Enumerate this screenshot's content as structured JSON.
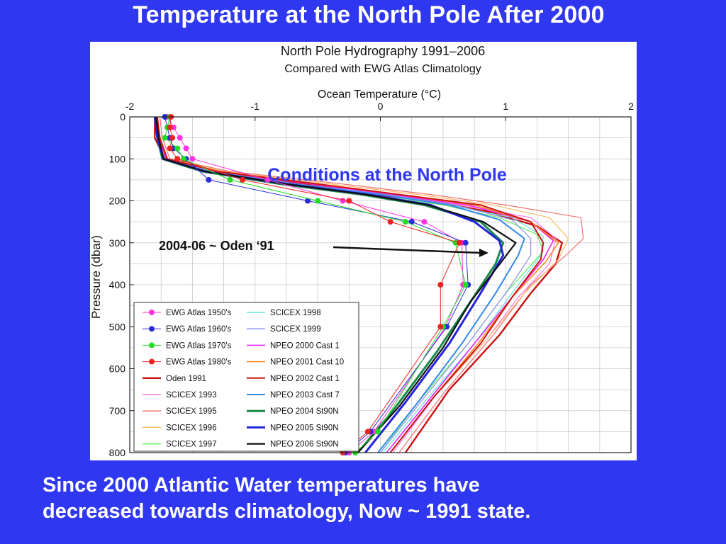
{
  "slide": {
    "title": "Temperature at the North Pole After 2000",
    "caption_lines": [
      "Since 2000 Atlantic Water  temperatures have",
      "decreased towards climatology, Now ~ 1991 state."
    ]
  },
  "chart_data": {
    "type": "line",
    "title": "North Pole Hydrography  1991–2006",
    "subtitle": "Compared with EWG Atlas Climatology",
    "xlabel": "Ocean Temperature (°C)",
    "ylabel": "Pressure  (dbar)",
    "xlim": [
      -2,
      2
    ],
    "ylim": [
      800,
      0
    ],
    "x_ticks": [
      -2,
      -1,
      0,
      1,
      2
    ],
    "y_ticks": [
      0,
      100,
      200,
      300,
      400,
      500,
      600,
      700,
      800
    ],
    "grid": true,
    "legend_position": "bottom-left",
    "annotations": [
      {
        "text": "Conditions at the North Pole",
        "color": "#2f37f0"
      },
      {
        "text": "2004-06 ~ Oden ‘91",
        "arrow_to": {
          "x": 0.86,
          "y": 325
        }
      }
    ],
    "series": [
      {
        "name": "EWG Atlas 1950's",
        "color": "#ff33dd",
        "style": "markers",
        "points": [
          [
            -1.7,
            0
          ],
          [
            -1.65,
            25
          ],
          [
            -1.6,
            50
          ],
          [
            -1.55,
            75
          ],
          [
            -1.5,
            100
          ],
          [
            -0.9,
            150
          ],
          [
            -0.3,
            200
          ],
          [
            0.35,
            250
          ],
          [
            0.65,
            300
          ],
          [
            0.66,
            400
          ],
          [
            0.52,
            500
          ],
          [
            -0.05,
            750
          ],
          [
            -0.25,
            800
          ]
        ]
      },
      {
        "name": "EWG Atlas 1960's",
        "color": "#2b2bd9",
        "style": "markers",
        "points": [
          [
            -1.72,
            0
          ],
          [
            -1.7,
            25
          ],
          [
            -1.68,
            50
          ],
          [
            -1.65,
            75
          ],
          [
            -1.55,
            100
          ],
          [
            -1.37,
            150
          ],
          [
            -0.58,
            200
          ],
          [
            0.25,
            250
          ],
          [
            0.68,
            300
          ],
          [
            0.7,
            400
          ],
          [
            0.53,
            500
          ],
          [
            -0.08,
            750
          ],
          [
            -0.28,
            800
          ]
        ]
      },
      {
        "name": "EWG Atlas 1970's",
        "color": "#22dd22",
        "style": "markers",
        "points": [
          [
            -1.68,
            0
          ],
          [
            -1.7,
            25
          ],
          [
            -1.72,
            50
          ],
          [
            -1.62,
            75
          ],
          [
            -1.57,
            100
          ],
          [
            -1.2,
            150
          ],
          [
            -0.5,
            200
          ],
          [
            0.2,
            250
          ],
          [
            0.6,
            300
          ],
          [
            0.68,
            400
          ],
          [
            0.5,
            500
          ],
          [
            -0.02,
            750
          ],
          [
            -0.2,
            800
          ]
        ]
      },
      {
        "name": "EWG Atlas 1980's",
        "color": "#ee2222",
        "style": "markers",
        "points": [
          [
            -1.67,
            0
          ],
          [
            -1.68,
            25
          ],
          [
            -1.66,
            50
          ],
          [
            -1.68,
            75
          ],
          [
            -1.62,
            100
          ],
          [
            -1.1,
            150
          ],
          [
            -0.25,
            200
          ],
          [
            0.08,
            250
          ],
          [
            0.63,
            300
          ],
          [
            0.48,
            400
          ],
          [
            0.48,
            500
          ],
          [
            -0.1,
            750
          ],
          [
            -0.3,
            800
          ]
        ]
      },
      {
        "name": "Oden 1991",
        "color": "#cc1111",
        "width": 2.4,
        "points": [
          [
            -1.8,
            0
          ],
          [
            -1.8,
            50
          ],
          [
            -1.72,
            100
          ],
          [
            -1.4,
            130
          ],
          [
            -0.6,
            160
          ],
          [
            -0.05,
            185
          ],
          [
            0.4,
            200
          ],
          [
            0.85,
            225
          ],
          [
            1.25,
            260
          ],
          [
            1.45,
            300
          ],
          [
            1.4,
            350
          ],
          [
            1.2,
            420
          ],
          [
            0.95,
            520
          ],
          [
            0.55,
            650
          ],
          [
            0.2,
            800
          ]
        ]
      },
      {
        "name": "SCICEX 1993",
        "color": "#ff77ee",
        "width": 1.2,
        "points": [
          [
            -1.78,
            0
          ],
          [
            -1.76,
            50
          ],
          [
            -1.7,
            100
          ],
          [
            -1.3,
            130
          ],
          [
            -0.5,
            160
          ],
          [
            0.1,
            185
          ],
          [
            0.65,
            210
          ],
          [
            1.2,
            240
          ],
          [
            1.4,
            290
          ],
          [
            1.35,
            350
          ],
          [
            1.1,
            430
          ],
          [
            0.85,
            530
          ],
          [
            0.45,
            660
          ],
          [
            0.1,
            800
          ]
        ]
      },
      {
        "name": "SCICEX 1995",
        "color": "#f07070",
        "width": 1.2,
        "points": [
          [
            -1.76,
            0
          ],
          [
            -1.74,
            50
          ],
          [
            -1.68,
            100
          ],
          [
            -1.2,
            130
          ],
          [
            -0.3,
            160
          ],
          [
            0.4,
            185
          ],
          [
            1.0,
            210
          ],
          [
            1.6,
            240
          ],
          [
            1.62,
            290
          ],
          [
            1.48,
            330
          ],
          [
            1.2,
            400
          ],
          [
            0.9,
            520
          ],
          [
            0.5,
            660
          ],
          [
            0.15,
            800
          ]
        ]
      },
      {
        "name": "SCICEX 1996",
        "color": "#ffbb66",
        "width": 1.2,
        "points": [
          [
            -1.78,
            0
          ],
          [
            -1.76,
            50
          ],
          [
            -1.7,
            100
          ],
          [
            -1.25,
            130
          ],
          [
            -0.4,
            160
          ],
          [
            0.3,
            185
          ],
          [
            0.9,
            210
          ],
          [
            1.35,
            240
          ],
          [
            1.5,
            290
          ],
          [
            1.42,
            340
          ],
          [
            1.15,
            420
          ],
          [
            0.85,
            530
          ],
          [
            0.42,
            670
          ],
          [
            0.08,
            800
          ]
        ]
      },
      {
        "name": "SCICEX 1997",
        "color": "#66ee55",
        "width": 1.2,
        "points": [
          [
            -1.8,
            0
          ],
          [
            -1.78,
            50
          ],
          [
            -1.74,
            100
          ],
          [
            -1.4,
            130
          ],
          [
            -0.8,
            160
          ],
          [
            -0.1,
            185
          ],
          [
            0.5,
            210
          ],
          [
            0.95,
            240
          ],
          [
            1.25,
            280
          ],
          [
            1.3,
            320
          ],
          [
            1.0,
            420
          ],
          [
            0.7,
            540
          ],
          [
            0.3,
            680
          ],
          [
            0.0,
            800
          ]
        ]
      },
      {
        "name": "SCICEX 1998",
        "color": "#66e6e6",
        "width": 1.2,
        "points": [
          [
            -1.79,
            0
          ],
          [
            -1.77,
            50
          ],
          [
            -1.73,
            100
          ],
          [
            -1.35,
            130
          ],
          [
            -0.7,
            160
          ],
          [
            0.0,
            185
          ],
          [
            0.55,
            210
          ],
          [
            1.05,
            240
          ],
          [
            1.3,
            285
          ],
          [
            1.28,
            330
          ],
          [
            1.05,
            420
          ],
          [
            0.75,
            540
          ],
          [
            0.35,
            680
          ],
          [
            0.02,
            800
          ]
        ]
      },
      {
        "name": "SCICEX 1999",
        "color": "#8f8fee",
        "width": 1.2,
        "points": [
          [
            -1.8,
            0
          ],
          [
            -1.78,
            50
          ],
          [
            -1.72,
            100
          ],
          [
            -1.35,
            130
          ],
          [
            -0.65,
            160
          ],
          [
            0.05,
            185
          ],
          [
            0.6,
            210
          ],
          [
            1.05,
            245
          ],
          [
            1.2,
            290
          ],
          [
            1.2,
            330
          ],
          [
            1.0,
            420
          ],
          [
            0.7,
            540
          ],
          [
            0.32,
            680
          ],
          [
            0.0,
            800
          ]
        ]
      },
      {
        "name": "NPEO 2000 Cast 1",
        "color": "#ee22ee",
        "width": 1.6,
        "points": [
          [
            -1.79,
            0
          ],
          [
            -1.77,
            50
          ],
          [
            -1.71,
            100
          ],
          [
            -1.3,
            130
          ],
          [
            -0.55,
            160
          ],
          [
            0.1,
            185
          ],
          [
            0.7,
            210
          ],
          [
            1.2,
            250
          ],
          [
            1.38,
            295
          ],
          [
            1.3,
            340
          ],
          [
            1.05,
            430
          ],
          [
            0.75,
            540
          ],
          [
            0.4,
            670
          ],
          [
            0.05,
            800
          ]
        ]
      },
      {
        "name": "NPEO 2001 Cast 10",
        "color": "#ff8822",
        "width": 1.6,
        "points": [
          [
            -1.78,
            0
          ],
          [
            -1.76,
            50
          ],
          [
            -1.7,
            100
          ],
          [
            -1.28,
            130
          ],
          [
            -0.5,
            160
          ],
          [
            0.15,
            185
          ],
          [
            0.75,
            210
          ],
          [
            1.2,
            250
          ],
          [
            1.42,
            300
          ],
          [
            1.32,
            345
          ],
          [
            1.05,
            430
          ],
          [
            0.78,
            540
          ],
          [
            0.42,
            670
          ],
          [
            0.08,
            800
          ]
        ]
      },
      {
        "name": "NPEO 2002 Cast 1",
        "color": "#cc1111",
        "width": 2.0,
        "points": [
          [
            -1.78,
            0
          ],
          [
            -1.76,
            50
          ],
          [
            -1.7,
            100
          ],
          [
            -1.3,
            130
          ],
          [
            -0.5,
            160
          ],
          [
            0.15,
            185
          ],
          [
            0.8,
            210
          ],
          [
            1.2,
            250
          ],
          [
            1.3,
            300
          ],
          [
            1.28,
            340
          ],
          [
            1.05,
            430
          ],
          [
            0.8,
            540
          ],
          [
            0.42,
            670
          ],
          [
            0.08,
            800
          ]
        ]
      },
      {
        "name": "NPEO 2003 Cast 7",
        "color": "#3388ee",
        "width": 2.0,
        "points": [
          [
            -1.8,
            0
          ],
          [
            -1.78,
            50
          ],
          [
            -1.73,
            100
          ],
          [
            -1.38,
            130
          ],
          [
            -0.7,
            160
          ],
          [
            0.0,
            185
          ],
          [
            0.55,
            210
          ],
          [
            0.95,
            245
          ],
          [
            1.15,
            290
          ],
          [
            1.1,
            330
          ],
          [
            0.92,
            420
          ],
          [
            0.65,
            540
          ],
          [
            0.3,
            680
          ],
          [
            -0.02,
            800
          ]
        ]
      },
      {
        "name": "NPEO 2004 St90N",
        "color": "#1a8a4a",
        "width": 3.0,
        "points": [
          [
            -1.79,
            0
          ],
          [
            -1.78,
            50
          ],
          [
            -1.74,
            100
          ],
          [
            -1.42,
            130
          ],
          [
            -0.8,
            160
          ],
          [
            -0.15,
            185
          ],
          [
            0.35,
            210
          ],
          [
            0.8,
            250
          ],
          [
            0.98,
            300
          ],
          [
            0.92,
            350
          ],
          [
            0.72,
            440
          ],
          [
            0.45,
            560
          ],
          [
            0.1,
            700
          ],
          [
            -0.18,
            800
          ]
        ]
      },
      {
        "name": "NPEO 2005 St90N",
        "color": "#2222dd",
        "width": 3.0,
        "points": [
          [
            -1.8,
            0
          ],
          [
            -1.78,
            50
          ],
          [
            -1.73,
            100
          ],
          [
            -1.4,
            130
          ],
          [
            -0.75,
            160
          ],
          [
            -0.1,
            185
          ],
          [
            0.4,
            210
          ],
          [
            0.75,
            250
          ],
          [
            0.95,
            295
          ],
          [
            0.98,
            330
          ],
          [
            0.8,
            420
          ],
          [
            0.55,
            540
          ],
          [
            0.2,
            680
          ],
          [
            -0.12,
            800
          ]
        ]
      },
      {
        "name": "NPEO 2006 St90N",
        "color": "#111111",
        "width": 2.2,
        "points": [
          [
            -1.79,
            0
          ],
          [
            -1.77,
            50
          ],
          [
            -1.73,
            100
          ],
          [
            -1.4,
            130
          ],
          [
            -0.75,
            160
          ],
          [
            -0.12,
            185
          ],
          [
            0.38,
            210
          ],
          [
            0.82,
            250
          ],
          [
            1.08,
            300
          ],
          [
            0.98,
            340
          ],
          [
            0.72,
            440
          ],
          [
            0.5,
            550
          ],
          [
            0.15,
            690
          ],
          [
            -0.18,
            800
          ]
        ]
      }
    ]
  }
}
